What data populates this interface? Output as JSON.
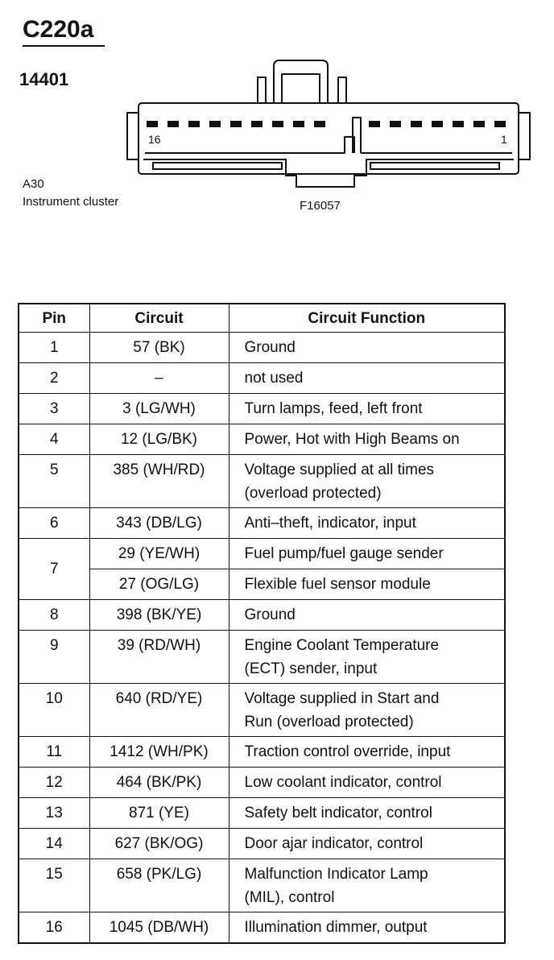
{
  "header": {
    "title": "C220a",
    "part": "14401"
  },
  "connector": {
    "left_pin": "16",
    "right_pin": "1",
    "figure": "F16057"
  },
  "location": {
    "code": "A30",
    "name": "Instrument cluster"
  },
  "table": {
    "columns": [
      "Pin",
      "Circuit",
      "Circuit Function"
    ],
    "rows": [
      {
        "pin": "1",
        "entries": [
          {
            "circuit": "57 (BK)",
            "function": [
              "Ground"
            ]
          }
        ]
      },
      {
        "pin": "2",
        "entries": [
          {
            "circuit": "–",
            "function": [
              "not used"
            ]
          }
        ]
      },
      {
        "pin": "3",
        "entries": [
          {
            "circuit": "3 (LG/WH)",
            "function": [
              "Turn lamps, feed, left front"
            ]
          }
        ]
      },
      {
        "pin": "4",
        "entries": [
          {
            "circuit": "12 (LG/BK)",
            "function": [
              "Power, Hot with High Beams on"
            ]
          }
        ]
      },
      {
        "pin": "5",
        "entries": [
          {
            "circuit": "385 (WH/RD)",
            "function": [
              "Voltage supplied at all times",
              "(overload protected)"
            ]
          }
        ]
      },
      {
        "pin": "6",
        "entries": [
          {
            "circuit": "343 (DB/LG)",
            "function": [
              "Anti–theft, indicator, input"
            ]
          }
        ]
      },
      {
        "pin": "7",
        "entries": [
          {
            "circuit": "29 (YE/WH)",
            "function": [
              "Fuel pump/fuel gauge sender"
            ]
          },
          {
            "circuit": "27 (OG/LG)",
            "function": [
              "Flexible fuel sensor module"
            ]
          }
        ]
      },
      {
        "pin": "8",
        "entries": [
          {
            "circuit": "398 (BK/YE)",
            "function": [
              "Ground"
            ]
          }
        ]
      },
      {
        "pin": "9",
        "entries": [
          {
            "circuit": "39 (RD/WH)",
            "function": [
              "Engine Coolant Temperature",
              "(ECT) sender, input"
            ]
          }
        ]
      },
      {
        "pin": "10",
        "entries": [
          {
            "circuit": "640 (RD/YE)",
            "function": [
              "Voltage supplied in Start and",
              "Run (overload protected)"
            ]
          }
        ]
      },
      {
        "pin": "11",
        "entries": [
          {
            "circuit": "1412 (WH/PK)",
            "function": [
              "Traction control override, input"
            ]
          }
        ]
      },
      {
        "pin": "12",
        "entries": [
          {
            "circuit": "464 (BK/PK)",
            "function": [
              "Low coolant indicator, control"
            ]
          }
        ]
      },
      {
        "pin": "13",
        "entries": [
          {
            "circuit": "871 (YE)",
            "function": [
              "Safety belt indicator, control"
            ]
          }
        ]
      },
      {
        "pin": "14",
        "entries": [
          {
            "circuit": "627 (BK/OG)",
            "function": [
              "Door ajar indicator, control"
            ]
          }
        ]
      },
      {
        "pin": "15",
        "entries": [
          {
            "circuit": "658 (PK/LG)",
            "function": [
              "Malfunction Indicator Lamp",
              "(MIL), control"
            ]
          }
        ]
      },
      {
        "pin": "16",
        "entries": [
          {
            "circuit": "1045 (DB/WH)",
            "function": [
              "Illumination dimmer, output"
            ]
          }
        ]
      }
    ]
  }
}
